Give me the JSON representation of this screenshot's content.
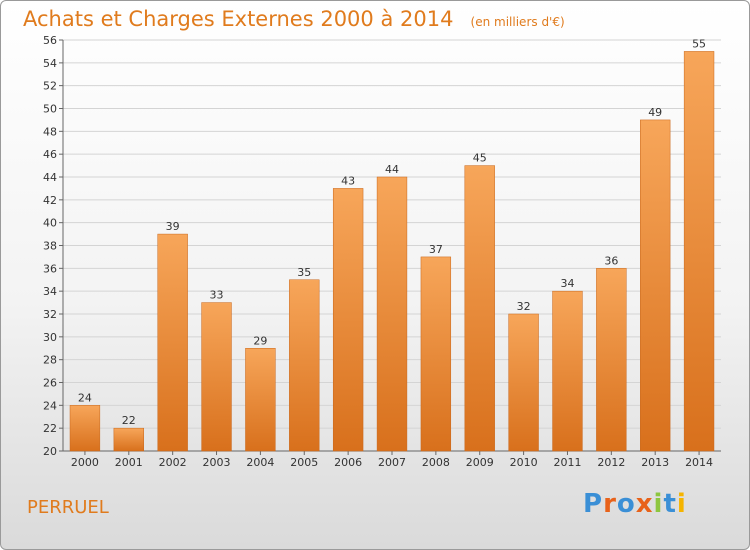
{
  "chart_data": {
    "type": "bar",
    "title": "Achats et Charges Externes 2000 à 2014",
    "subtitle": "(en milliers d'€)",
    "categories": [
      "2000",
      "2001",
      "2002",
      "2003",
      "2004",
      "2005",
      "2006",
      "2007",
      "2008",
      "2009",
      "2010",
      "2011",
      "2012",
      "2013",
      "2014"
    ],
    "values": [
      24,
      22,
      39,
      33,
      29,
      35,
      43,
      44,
      37,
      45,
      32,
      34,
      36,
      49,
      55
    ],
    "ylim": [
      20,
      56
    ],
    "yticks": [
      20,
      22,
      24,
      26,
      28,
      30,
      32,
      34,
      36,
      38,
      40,
      42,
      44,
      46,
      48,
      50,
      52,
      54,
      56
    ],
    "grid": true,
    "bar_color_light": "#f7a65a",
    "bar_color_dark": "#d8701c"
  },
  "footer": {
    "commune": "PERRUEL"
  },
  "logo": {
    "text": "Proxiti",
    "colors": [
      "#3a8fd6",
      "#e8621a",
      "#3a8fd6",
      "#e8621a",
      "#8dc63f",
      "#3a8fd6",
      "#f5b400"
    ]
  },
  "colors": {
    "accent": "#e07b1d"
  }
}
